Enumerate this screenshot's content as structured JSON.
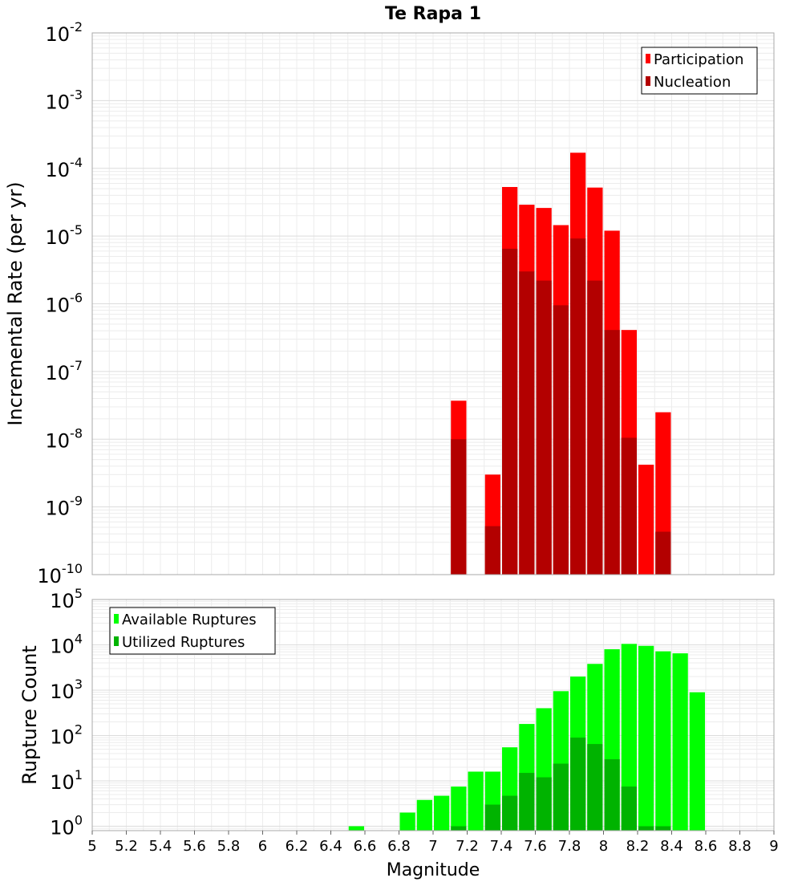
{
  "chart_data": [
    {
      "type": "bar",
      "title": "Te Rapa 1",
      "ylabel": "Incremental Rate (per yr)",
      "xlabel": "",
      "yscale": "log",
      "ylim": [
        1e-10,
        0.01
      ],
      "xlim": [
        5,
        9
      ],
      "bin_width": 0.1,
      "grid": true,
      "legend_position": "top-right",
      "series": [
        {
          "name": "Participation",
          "color": "#ff0000",
          "points": [
            {
              "x": 7.15,
              "y": 3.7e-08
            },
            {
              "x": 7.35,
              "y": 3e-09
            },
            {
              "x": 7.45,
              "y": 5.3e-05
            },
            {
              "x": 7.55,
              "y": 2.9e-05
            },
            {
              "x": 7.65,
              "y": 2.6e-05
            },
            {
              "x": 7.75,
              "y": 1.45e-05
            },
            {
              "x": 7.85,
              "y": 0.00017
            },
            {
              "x": 7.95,
              "y": 5.2e-05
            },
            {
              "x": 8.05,
              "y": 1.2e-05
            },
            {
              "x": 8.15,
              "y": 4.1e-07
            },
            {
              "x": 8.25,
              "y": 4.2e-09
            },
            {
              "x": 8.35,
              "y": 2.5e-08
            }
          ]
        },
        {
          "name": "Nucleation",
          "color": "#b30000",
          "points": [
            {
              "x": 7.15,
              "y": 1e-08
            },
            {
              "x": 7.35,
              "y": 5.2e-10
            },
            {
              "x": 7.45,
              "y": 6.5e-06
            },
            {
              "x": 7.55,
              "y": 3e-06
            },
            {
              "x": 7.65,
              "y": 2.2e-06
            },
            {
              "x": 7.75,
              "y": 9.5e-07
            },
            {
              "x": 7.85,
              "y": 9.2e-06
            },
            {
              "x": 7.95,
              "y": 2.2e-06
            },
            {
              "x": 8.05,
              "y": 4.1e-07
            },
            {
              "x": 8.15,
              "y": 1.05e-08
            },
            {
              "x": 8.35,
              "y": 4.3e-10
            }
          ]
        }
      ]
    },
    {
      "type": "bar",
      "title": "",
      "ylabel": "Rupture Count",
      "xlabel": "Magnitude",
      "yscale": "log",
      "ylim": [
        0.8,
        100000
      ],
      "xlim": [
        5,
        9
      ],
      "bin_width": 0.1,
      "grid": true,
      "legend_position": "top-left",
      "x_ticks": [
        "5",
        "5.2",
        "5.4",
        "5.6",
        "5.8",
        "6",
        "6.2",
        "6.4",
        "6.6",
        "6.8",
        "7",
        "7.2",
        "7.4",
        "7.6",
        "7.8",
        "8",
        "8.2",
        "8.4",
        "8.6",
        "8.8",
        "9"
      ],
      "series": [
        {
          "name": "Available Ruptures",
          "color": "#00ff00",
          "points": [
            {
              "x": 6.55,
              "y": 1
            },
            {
              "x": 6.85,
              "y": 2
            },
            {
              "x": 6.95,
              "y": 3.8
            },
            {
              "x": 7.05,
              "y": 4.7
            },
            {
              "x": 7.15,
              "y": 7.5
            },
            {
              "x": 7.25,
              "y": 16
            },
            {
              "x": 7.35,
              "y": 16
            },
            {
              "x": 7.45,
              "y": 55
            },
            {
              "x": 7.55,
              "y": 180
            },
            {
              "x": 7.65,
              "y": 400
            },
            {
              "x": 7.75,
              "y": 950
            },
            {
              "x": 7.85,
              "y": 2000
            },
            {
              "x": 7.95,
              "y": 3800
            },
            {
              "x": 8.05,
              "y": 8000
            },
            {
              "x": 8.15,
              "y": 10500
            },
            {
              "x": 8.25,
              "y": 9500
            },
            {
              "x": 8.35,
              "y": 7200
            },
            {
              "x": 8.45,
              "y": 6500
            },
            {
              "x": 8.55,
              "y": 900
            }
          ]
        },
        {
          "name": "Utilized Ruptures",
          "color": "#00b300",
          "points": [
            {
              "x": 7.15,
              "y": 1
            },
            {
              "x": 7.35,
              "y": 3
            },
            {
              "x": 7.45,
              "y": 4.7
            },
            {
              "x": 7.55,
              "y": 15
            },
            {
              "x": 7.65,
              "y": 12
            },
            {
              "x": 7.75,
              "y": 24
            },
            {
              "x": 7.85,
              "y": 90
            },
            {
              "x": 7.95,
              "y": 65
            },
            {
              "x": 8.05,
              "y": 30
            },
            {
              "x": 8.15,
              "y": 7.5
            },
            {
              "x": 8.25,
              "y": 1
            },
            {
              "x": 8.35,
              "y": 1
            }
          ]
        }
      ]
    }
  ]
}
